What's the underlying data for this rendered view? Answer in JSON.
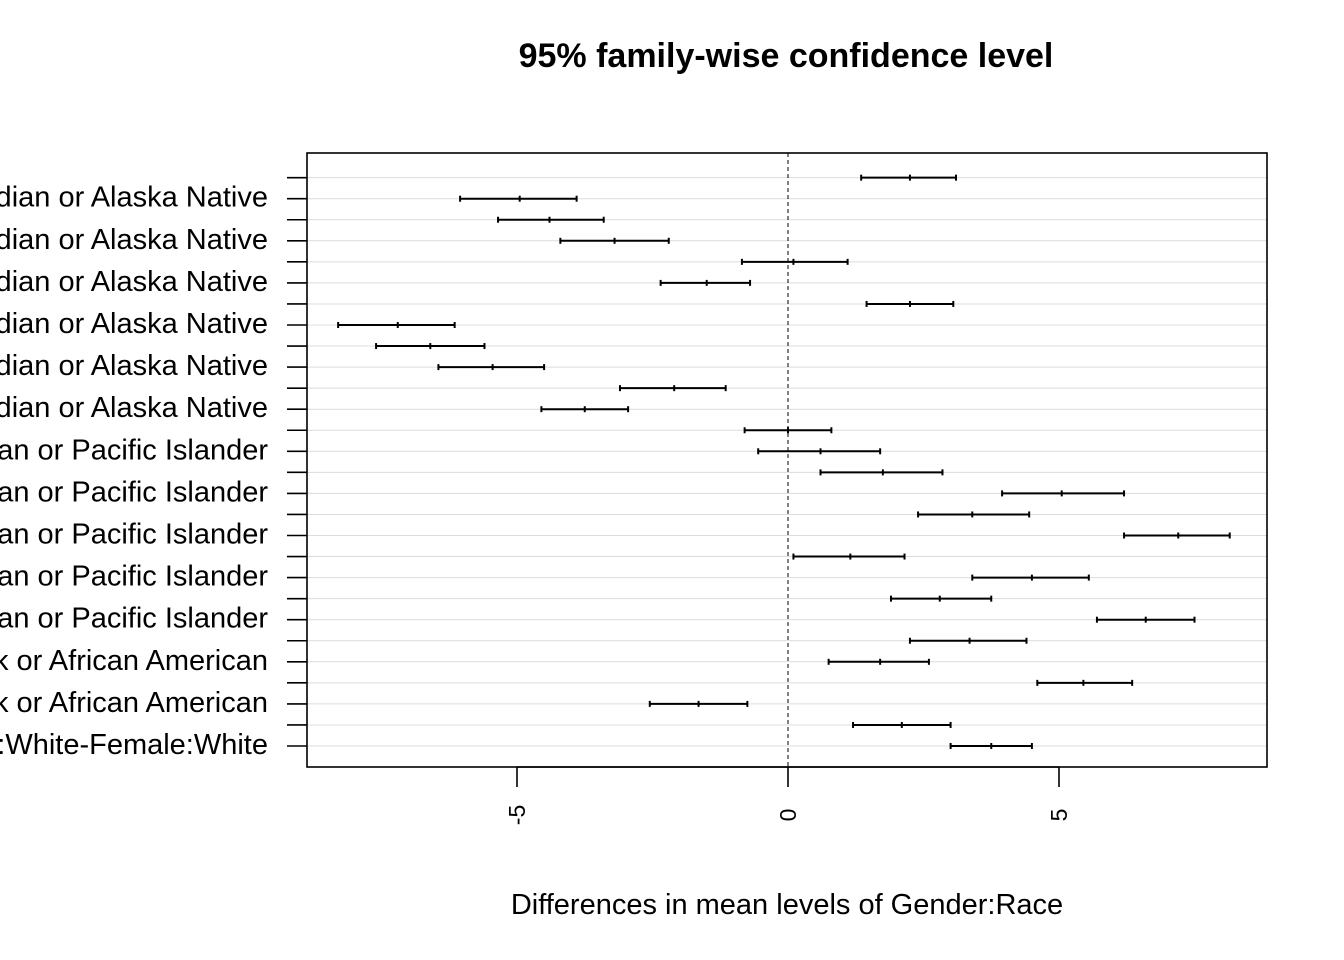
{
  "chart_data": {
    "type": "interval",
    "title": "95% family-wise confidence level",
    "xlabel": "Differences in mean levels of Gender:Race",
    "ylabel": "",
    "xlim": [
      -8.7,
      8.7
    ],
    "x_ticks": [
      -5,
      0,
      5
    ],
    "x_tick_labels": [
      "-5",
      "0",
      "5"
    ],
    "reference_line": 0,
    "grid": "horizontal",
    "y_tick_labels_visible": [
      "Indian or Alaska Native",
      "Indian or Alaska Native",
      "Indian or Alaska Native",
      "Indian or Alaska Native",
      "Indian or Alaska Native",
      "Indian or Alaska Native",
      "Asian or Pacific Islander",
      "Asian or Pacific Islander",
      "Asian or Pacific Islander",
      "Asian or Pacific Islander",
      "Asian or Pacific Islander",
      "ack or African American",
      "ack or African American",
      "ale:White-Female:White"
    ],
    "intervals": [
      {
        "lwr": 1.35,
        "diff": 2.25,
        "upr": 3.1
      },
      {
        "lwr": -6.05,
        "diff": -4.95,
        "upr": -3.9
      },
      {
        "lwr": -5.35,
        "diff": -4.4,
        "upr": -3.4
      },
      {
        "lwr": -4.2,
        "diff": -3.2,
        "upr": -2.2
      },
      {
        "lwr": -0.85,
        "diff": 0.1,
        "upr": 1.1
      },
      {
        "lwr": -2.35,
        "diff": -1.5,
        "upr": -0.7
      },
      {
        "lwr": 1.45,
        "diff": 2.25,
        "upr": 3.05
      },
      {
        "lwr": -8.3,
        "diff": -7.2,
        "upr": -6.15
      },
      {
        "lwr": -7.6,
        "diff": -6.6,
        "upr": -5.6
      },
      {
        "lwr": -6.45,
        "diff": -5.45,
        "upr": -4.5
      },
      {
        "lwr": -3.1,
        "diff": -2.1,
        "upr": -1.15
      },
      {
        "lwr": -4.55,
        "diff": -3.75,
        "upr": -2.95
      },
      {
        "lwr": -0.8,
        "diff": 0.0,
        "upr": 0.8
      },
      {
        "lwr": -0.55,
        "diff": 0.6,
        "upr": 1.7
      },
      {
        "lwr": 0.6,
        "diff": 1.75,
        "upr": 2.85
      },
      {
        "lwr": 3.95,
        "diff": 5.05,
        "upr": 6.2
      },
      {
        "lwr": 2.4,
        "diff": 3.4,
        "upr": 4.45
      },
      {
        "lwr": 6.2,
        "diff": 7.2,
        "upr": 8.15
      },
      {
        "lwr": 0.1,
        "diff": 1.15,
        "upr": 2.15
      },
      {
        "lwr": 3.4,
        "diff": 4.5,
        "upr": 5.55
      },
      {
        "lwr": 1.9,
        "diff": 2.8,
        "upr": 3.75
      },
      {
        "lwr": 5.7,
        "diff": 6.6,
        "upr": 7.5
      },
      {
        "lwr": 2.25,
        "diff": 3.35,
        "upr": 4.4
      },
      {
        "lwr": 0.75,
        "diff": 1.7,
        "upr": 2.6
      },
      {
        "lwr": 4.6,
        "diff": 5.45,
        "upr": 6.35
      },
      {
        "lwr": -2.55,
        "diff": -1.65,
        "upr": -0.75
      },
      {
        "lwr": 1.2,
        "diff": 2.1,
        "upr": 3.0
      },
      {
        "lwr": 3.0,
        "diff": 3.75,
        "upr": 4.5
      }
    ]
  }
}
